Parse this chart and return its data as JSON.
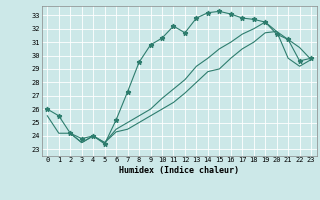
{
  "title": "",
  "xlabel": "Humidex (Indice chaleur)",
  "bg_color": "#cce8e8",
  "grid_color": "#ffffff",
  "line_color": "#2e7d6e",
  "xlim": [
    -0.5,
    23.5
  ],
  "ylim": [
    22.5,
    33.7
  ],
  "yticks": [
    23,
    24,
    25,
    26,
    27,
    28,
    29,
    30,
    31,
    32,
    33
  ],
  "xticks": [
    0,
    1,
    2,
    3,
    4,
    5,
    6,
    7,
    8,
    9,
    10,
    11,
    12,
    13,
    14,
    15,
    16,
    17,
    18,
    19,
    20,
    21,
    22,
    23
  ],
  "curve1_x": [
    0,
    1,
    2,
    3,
    4,
    5,
    6,
    7,
    8,
    9,
    10,
    11,
    12,
    13,
    14,
    15,
    16,
    17,
    18,
    19,
    20,
    21,
    22,
    23
  ],
  "curve1_y": [
    26.0,
    25.5,
    24.2,
    23.8,
    24.0,
    23.4,
    25.2,
    27.3,
    29.5,
    30.8,
    31.3,
    32.2,
    31.7,
    32.8,
    33.2,
    33.3,
    33.1,
    32.8,
    32.7,
    32.5,
    31.6,
    31.2,
    29.6,
    29.8
  ],
  "curve2_x": [
    0,
    1,
    2,
    3,
    4,
    5,
    6,
    7,
    8,
    9,
    10,
    11,
    12,
    13,
    14,
    15,
    16,
    17,
    18,
    19,
    20,
    21,
    22,
    23
  ],
  "curve2_y": [
    25.5,
    24.2,
    24.2,
    23.5,
    24.0,
    23.5,
    24.3,
    24.5,
    25.0,
    25.5,
    26.0,
    26.5,
    27.2,
    28.0,
    28.8,
    29.0,
    29.8,
    30.5,
    31.0,
    31.7,
    31.8,
    31.2,
    30.6,
    29.7
  ],
  "curve3_x": [
    2,
    3,
    4,
    5,
    6,
    7,
    8,
    9,
    10,
    11,
    12,
    13,
    14,
    15,
    16,
    17,
    18,
    19,
    20,
    21,
    22,
    23
  ],
  "curve3_y": [
    24.2,
    23.5,
    24.0,
    23.5,
    24.5,
    25.0,
    25.5,
    26.0,
    26.8,
    27.5,
    28.2,
    29.2,
    29.8,
    30.5,
    31.0,
    31.6,
    32.0,
    32.5,
    31.8,
    29.8,
    29.2,
    29.7
  ],
  "xlabel_fontsize": 6,
  "tick_fontsize": 5
}
